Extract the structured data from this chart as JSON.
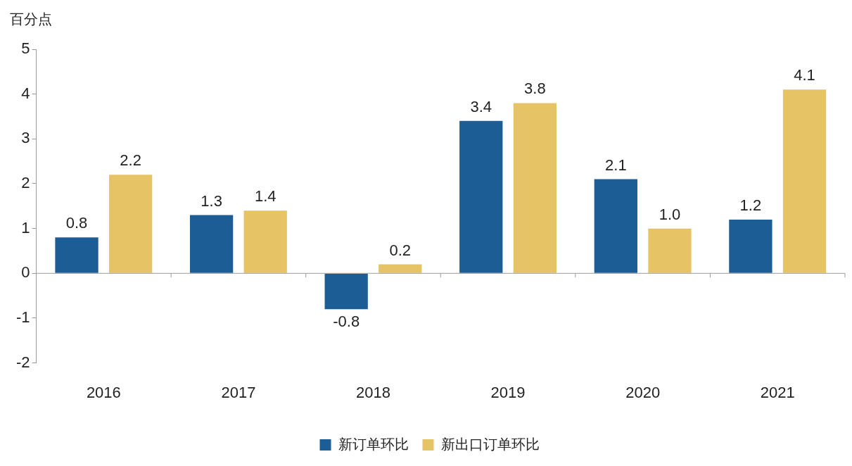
{
  "chart_data": {
    "type": "bar",
    "ylabel": "百分点",
    "categories": [
      "2016",
      "2017",
      "2018",
      "2019",
      "2020",
      "2021"
    ],
    "series": [
      {
        "name": "新订单环比",
        "color": "#1d5d96",
        "values": [
          0.8,
          1.3,
          -0.8,
          3.4,
          2.1,
          1.2
        ],
        "value_labels": [
          "0.8",
          "1.3",
          "-0.8",
          "3.4",
          "2.1",
          "1.2"
        ]
      },
      {
        "name": "新出口订单环比",
        "color": "#e6c466",
        "values": [
          2.2,
          1.4,
          0.2,
          3.8,
          1.0,
          4.1
        ],
        "value_labels": [
          "2.2",
          "1.4",
          "0.2",
          "3.8",
          "1.0",
          "4.1"
        ]
      }
    ],
    "ylim": [
      -2,
      5
    ],
    "yticks": [
      -2,
      -1,
      0,
      1,
      2,
      3,
      4,
      5
    ],
    "legend": "bottom"
  }
}
